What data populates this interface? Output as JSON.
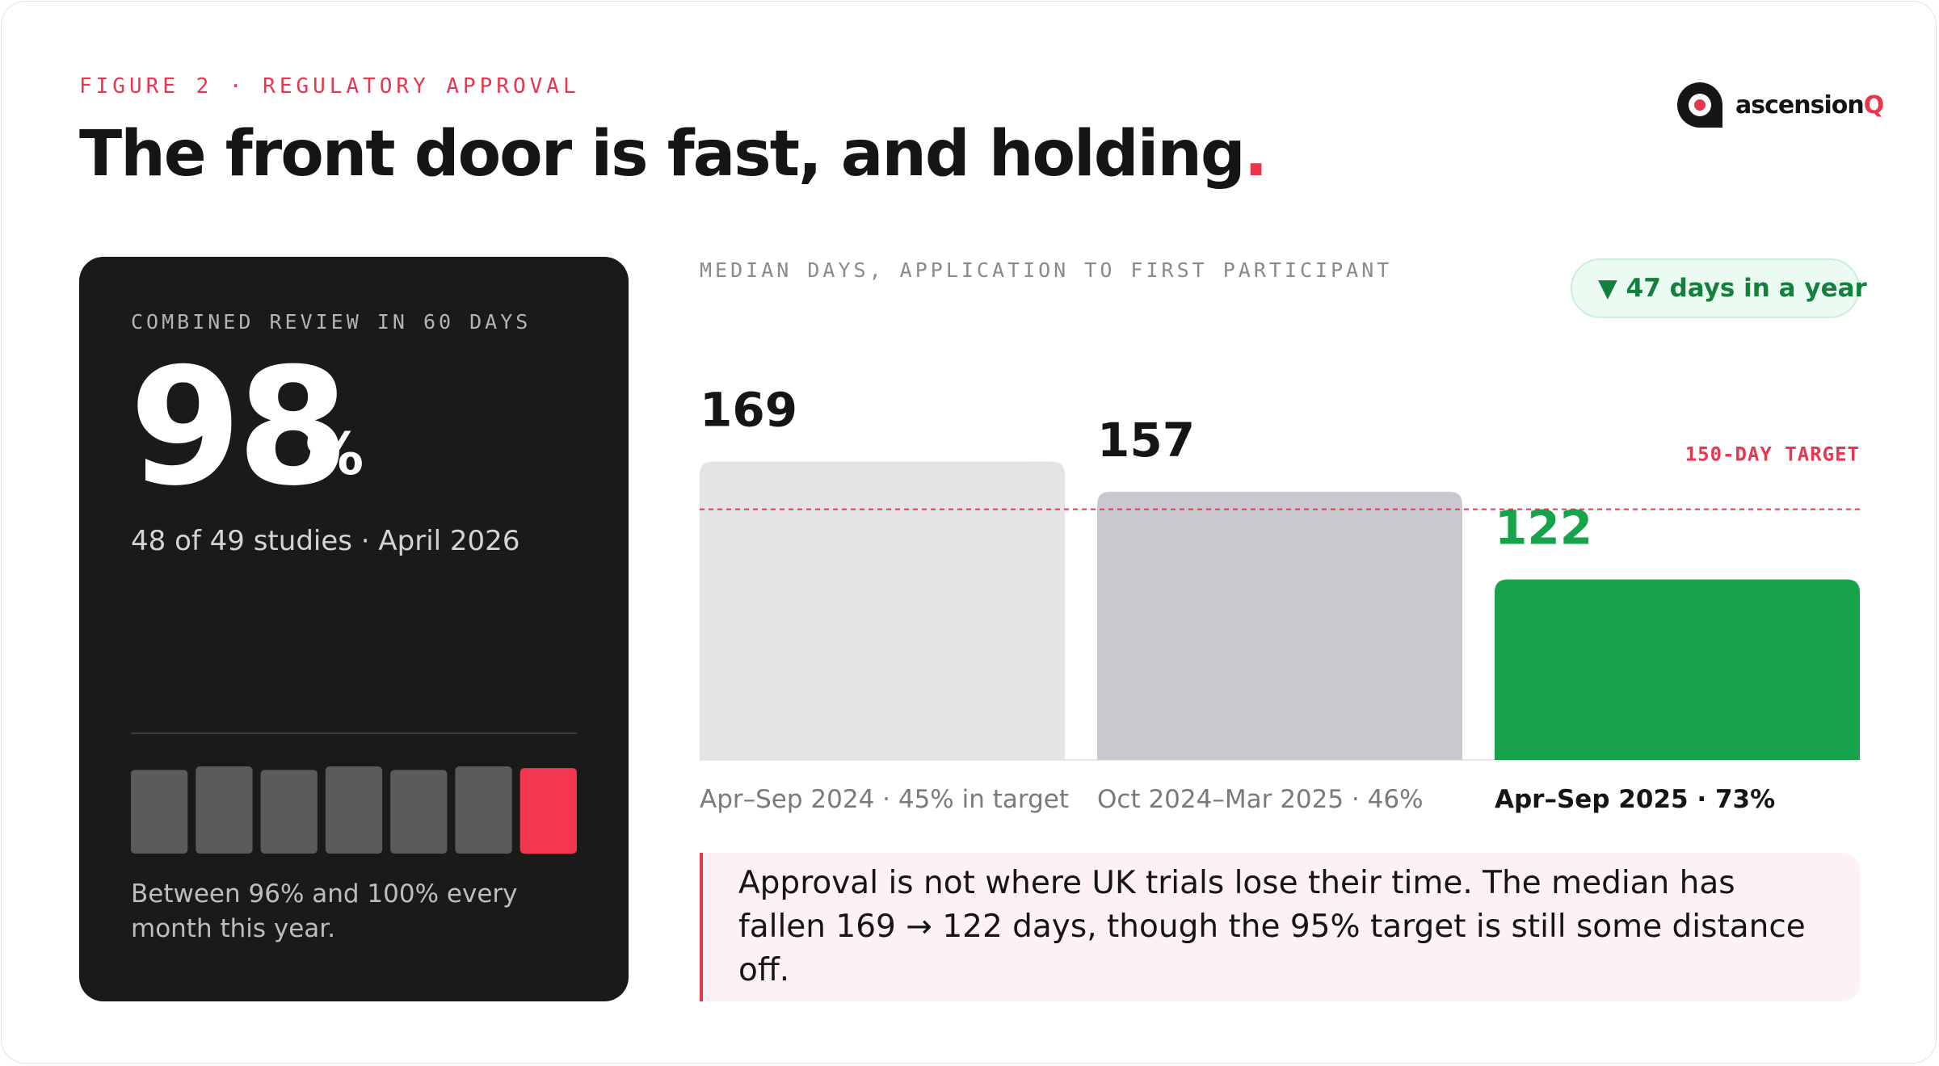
{
  "header": {
    "eyebrow": "FIGURE 2 · REGULATORY APPROVAL",
    "title": "The front door is fast, and holding",
    "title_accent": "."
  },
  "logo": {
    "text": "ascension",
    "accent": "Q"
  },
  "kpi": {
    "label": "COMBINED REVIEW IN 60 DAYS",
    "value": 98,
    "unit": "%",
    "detail": "48 of 49 studies · April 2026",
    "caption": "Between 96% and 100% every month this year.",
    "spark": {
      "type": "bar",
      "values": [
        96,
        100,
        96,
        100,
        96,
        100,
        98
      ],
      "ylim": [
        0,
        100
      ],
      "colors": [
        "#5b5b5b",
        "#5b5b5b",
        "#5b5b5b",
        "#5b5b5b",
        "#5b5b5b",
        "#5b5b5b",
        "#f2364f"
      ]
    }
  },
  "chart_data": {
    "type": "bar",
    "subtitle": "MEDIAN DAYS, APPLICATION TO FIRST PARTICIPANT",
    "badge": "▼ 47 days in a year",
    "categories": [
      "Apr–Sep 2024 · 45% in target",
      "Oct 2024–Mar 2025 · 46%",
      "Apr–Sep 2025 · 73%"
    ],
    "values": [
      169,
      157,
      122
    ],
    "colors": [
      "#e4e4e7",
      "#c9c8ce",
      "#16a34a"
    ],
    "ylim": [
      50,
      175
    ],
    "target": {
      "value": 150,
      "label": "150-DAY TARGET",
      "color": "#e8364f"
    }
  },
  "note": {
    "text": "Approval is not where UK trials lose their time. The median has fallen 169 → 122 days, though the 95% target is still some distance off."
  }
}
